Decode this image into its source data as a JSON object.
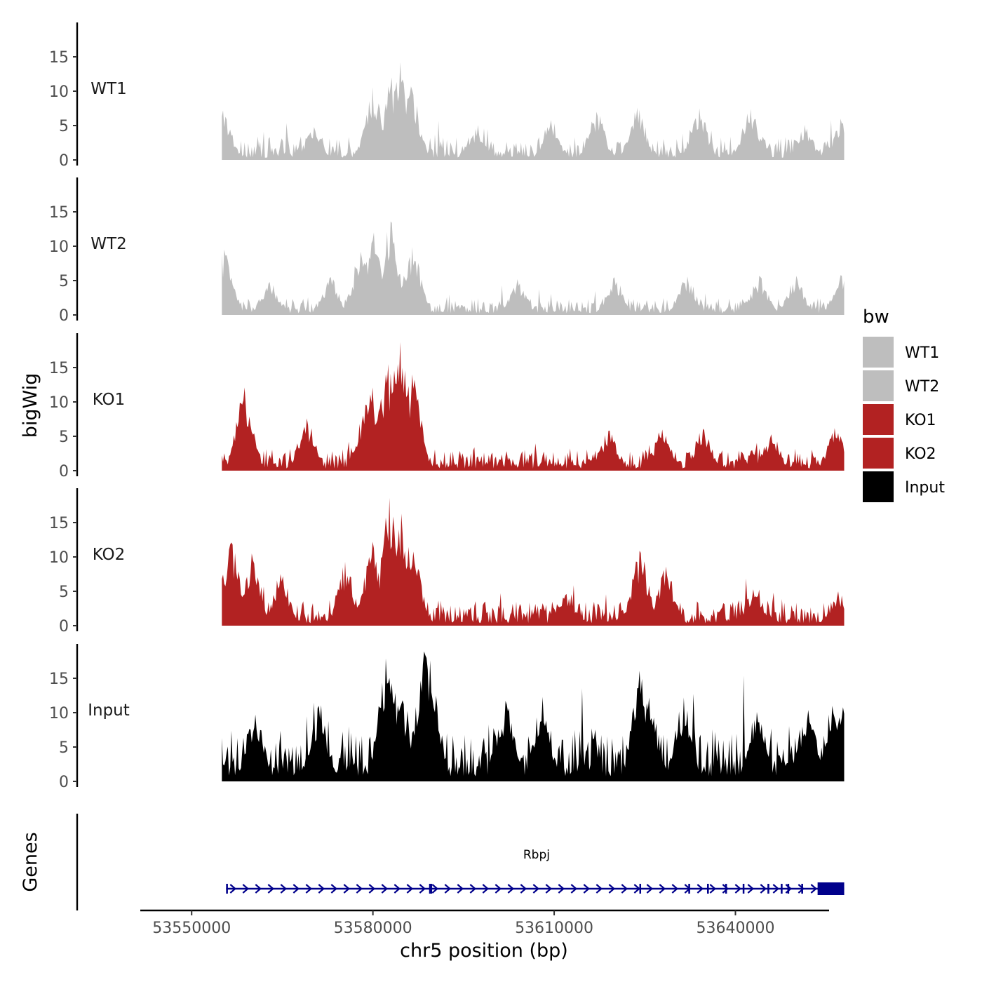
{
  "chart_data": {
    "type": "area",
    "ylabel": "bigWig",
    "genes_label": "Genes",
    "xlabel": "chr5 position (bp)",
    "xlim": [
      53541500,
      53655500
    ],
    "x_ticks": [
      53550000,
      53580000,
      53610000,
      53640000
    ],
    "x_tick_labels": [
      "53550000",
      "53580000",
      "53610000",
      "53640000"
    ],
    "signal_range": [
      53555000,
      53658000
    ],
    "ylim": [
      0,
      20
    ],
    "y_ticks": [
      0,
      5,
      10,
      15
    ],
    "y_tick_labels": [
      "0",
      "5",
      "10",
      "15"
    ],
    "legend": {
      "title": "bw",
      "position": "right",
      "entries": [
        {
          "label": "WT1",
          "color": "#BEBEBE"
        },
        {
          "label": "WT2",
          "color": "#BEBEBE"
        },
        {
          "label": "KO1",
          "color": "#B22222"
        },
        {
          "label": "KO2",
          "color": "#B22222"
        },
        {
          "label": "Input",
          "color": "#000000"
        }
      ]
    },
    "series": [
      {
        "name": "WT1",
        "color": "#BEBEBE",
        "baseline": 2.2,
        "peak_max": 14.2,
        "peaks": [
          [
            53555200,
            7.2
          ],
          [
            53570200,
            4.8
          ],
          [
            53580000,
            10.6
          ],
          [
            53583200,
            12.0
          ],
          [
            53584500,
            14.2
          ],
          [
            53586200,
            10.7
          ],
          [
            53597000,
            4.5
          ],
          [
            53609500,
            5.8
          ],
          [
            53617000,
            7.0
          ],
          [
            53623800,
            7.6
          ],
          [
            53634000,
            7.5
          ],
          [
            53642500,
            7.4
          ],
          [
            53651500,
            5.1
          ],
          [
            53657500,
            6.0
          ]
        ]
      },
      {
        "name": "WT2",
        "color": "#BEBEBE",
        "baseline": 1.6,
        "peak_max": 13.6,
        "peaks": [
          [
            53555400,
            9.5
          ],
          [
            53563000,
            4.8
          ],
          [
            53573000,
            5.5
          ],
          [
            53578000,
            9.2
          ],
          [
            53580200,
            12.0
          ],
          [
            53583000,
            13.6
          ],
          [
            53586500,
            9.9
          ],
          [
            53604000,
            5.2
          ],
          [
            53620000,
            5.5
          ],
          [
            53632000,
            5.6
          ],
          [
            53644000,
            5.7
          ],
          [
            53650000,
            5.7
          ],
          [
            53657500,
            5.8
          ]
        ]
      },
      {
        "name": "KO1",
        "color": "#B22222",
        "baseline": 2.0,
        "peak_max": 18.7,
        "peaks": [
          [
            53558800,
            12.1
          ],
          [
            53569000,
            7.6
          ],
          [
            53578800,
            9.6
          ],
          [
            53580000,
            12.1
          ],
          [
            53582500,
            15.5
          ],
          [
            53584500,
            18.7
          ],
          [
            53586500,
            14.0
          ],
          [
            53619000,
            5.8
          ],
          [
            53627800,
            6.0
          ],
          [
            53634600,
            6.1
          ],
          [
            53646000,
            5.3
          ],
          [
            53656500,
            6.2
          ]
        ]
      },
      {
        "name": "KO2",
        "color": "#B22222",
        "baseline": 2.4,
        "peak_max": 18.6,
        "peaks": [
          [
            53556500,
            12.1
          ],
          [
            53560000,
            10.5
          ],
          [
            53564800,
            7.5
          ],
          [
            53575500,
            9.3
          ],
          [
            53580000,
            12.2
          ],
          [
            53582800,
            18.6
          ],
          [
            53584800,
            16.3
          ],
          [
            53586600,
            10.8
          ],
          [
            53612000,
            4.6
          ],
          [
            53624200,
            10.9
          ],
          [
            53628500,
            8.6
          ],
          [
            53643000,
            5.3
          ],
          [
            53657000,
            5.0
          ]
        ]
      },
      {
        "name": "Input",
        "color": "#000000",
        "baseline": 5.0,
        "peak_max": 18.9,
        "peaks": [
          [
            53560500,
            9.7
          ],
          [
            53571000,
            11.0
          ],
          [
            53582200,
            17.9
          ],
          [
            53583700,
            12.9
          ],
          [
            53585000,
            11.8
          ],
          [
            53588500,
            18.9
          ],
          [
            53589500,
            17.6
          ],
          [
            53602000,
            11.7
          ],
          [
            53608000,
            12.3
          ],
          [
            53624200,
            16.1
          ],
          [
            53625800,
            12.2
          ],
          [
            53631500,
            12.2
          ],
          [
            53643500,
            10.1
          ],
          [
            53652000,
            10.4
          ],
          [
            53656000,
            11.0
          ],
          [
            53657800,
            10.8
          ]
        ]
      }
    ],
    "gene": {
      "name": "Rbpj",
      "strand": "+",
      "start": 53555700,
      "end": 53658000,
      "color": "#00008B",
      "exons": [
        [
          53555700,
          53556000
        ],
        [
          53589300,
          53589800
        ],
        [
          53624100,
          53624300
        ],
        [
          53632200,
          53632500
        ],
        [
          53635300,
          53635600
        ],
        [
          53638300,
          53638600
        ],
        [
          53641200,
          53641400
        ],
        [
          53645300,
          53645600
        ],
        [
          53647500,
          53647800
        ],
        [
          53648600,
          53648900
        ],
        [
          53650900,
          53651200
        ],
        [
          53653600,
          53658000
        ]
      ]
    }
  }
}
